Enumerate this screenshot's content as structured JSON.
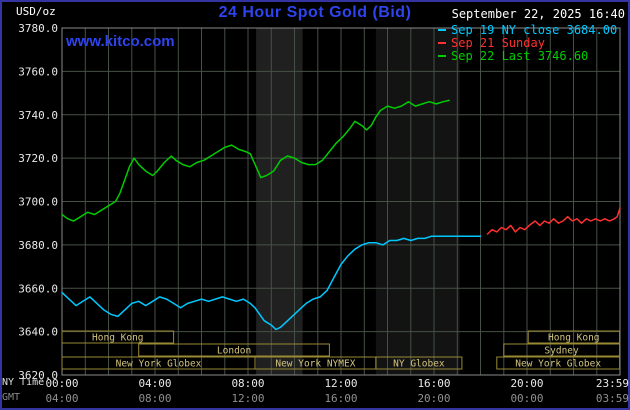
{
  "header": {
    "units": "USD/oz",
    "title": "24 Hour Spot Gold (Bid)",
    "datetime": "September 22, 2025 16:40",
    "watermark": "www.kitco.com",
    "legend": [
      {
        "label": "Sep 19 NY close 3684.00",
        "color": "#00c8ff"
      },
      {
        "label": "Sep 21 Sunday",
        "color": "#ff3030"
      },
      {
        "label": "Sep 22 Last 3746.60",
        "color": "#00cc00"
      }
    ]
  },
  "axes": {
    "ny_time_label": "NY Time",
    "gmt_label": "GMT"
  },
  "chart_data": {
    "type": "line",
    "title": "24 Hour Spot Gold (Bid)",
    "xlabel": "NY Time",
    "ylabel": "USD/oz",
    "x_hours": [
      0,
      24
    ],
    "ylim": [
      3620,
      3780
    ],
    "ytick_step": 20,
    "grid": true,
    "grid_color": "#465046",
    "frame_color": "#8a8a8a",
    "session_border": "#9a8a34",
    "session_text": "#d2c47c",
    "xticks": [
      {
        "h": 0,
        "ny": "00:00",
        "gmt": "04:00"
      },
      {
        "h": 4,
        "ny": "04:00",
        "gmt": "08:00"
      },
      {
        "h": 8,
        "ny": "08:00",
        "gmt": "12:00"
      },
      {
        "h": 12,
        "ny": "12:00",
        "gmt": "16:00"
      },
      {
        "h": 16,
        "ny": "16:00",
        "gmt": "20:00"
      },
      {
        "h": 20,
        "ny": "20:00",
        "gmt": "00:00"
      },
      {
        "h": 23.98,
        "ny": "23:59",
        "gmt": "03:59"
      }
    ],
    "highlight_bands": [
      {
        "from": 8.35,
        "to": 10.35,
        "color": "#202020"
      },
      {
        "from": 13.5,
        "to": 17.1,
        "color": "#131313"
      }
    ],
    "sessions": [
      {
        "label": "Hong Kong",
        "row": 0,
        "from": 0,
        "to": 4.8
      },
      {
        "label": "Hong Kong",
        "row": 0,
        "from": 20.05,
        "to": 23.98
      },
      {
        "label": "London",
        "row": 1,
        "from": 3.3,
        "to": 11.5
      },
      {
        "label": "Sydney",
        "row": 1,
        "from": 19.0,
        "to": 23.98
      },
      {
        "label": "New York Globex",
        "row": 2,
        "from": 0,
        "to": 8.3
      },
      {
        "label": "New York NYMEX",
        "row": 2,
        "from": 8.3,
        "to": 13.5
      },
      {
        "label": "NY Globex",
        "row": 2,
        "from": 13.5,
        "to": 17.2
      },
      {
        "label": "New York Globex",
        "row": 2,
        "from": 18.7,
        "to": 23.98
      }
    ],
    "series": [
      {
        "id": "sep19",
        "name": "Sep 19 NY close",
        "close": 3684.0,
        "color": "#00c8ff",
        "points": [
          [
            0,
            3658
          ],
          [
            0.3,
            3655
          ],
          [
            0.6,
            3652
          ],
          [
            0.9,
            3654
          ],
          [
            1.2,
            3656
          ],
          [
            1.5,
            3653
          ],
          [
            1.8,
            3650
          ],
          [
            2.1,
            3648
          ],
          [
            2.4,
            3647
          ],
          [
            2.7,
            3650
          ],
          [
            3.0,
            3653
          ],
          [
            3.3,
            3654
          ],
          [
            3.6,
            3652
          ],
          [
            3.9,
            3654
          ],
          [
            4.2,
            3656
          ],
          [
            4.5,
            3655
          ],
          [
            4.8,
            3653
          ],
          [
            5.1,
            3651
          ],
          [
            5.4,
            3653
          ],
          [
            5.7,
            3654
          ],
          [
            6.0,
            3655
          ],
          [
            6.3,
            3654
          ],
          [
            6.6,
            3655
          ],
          [
            6.9,
            3656
          ],
          [
            7.2,
            3655
          ],
          [
            7.5,
            3654
          ],
          [
            7.8,
            3655
          ],
          [
            8.1,
            3653
          ],
          [
            8.3,
            3651
          ],
          [
            8.5,
            3648
          ],
          [
            8.7,
            3645
          ],
          [
            9.0,
            3643
          ],
          [
            9.2,
            3641
          ],
          [
            9.4,
            3642
          ],
          [
            9.6,
            3644
          ],
          [
            9.9,
            3647
          ],
          [
            10.2,
            3650
          ],
          [
            10.5,
            3653
          ],
          [
            10.8,
            3655
          ],
          [
            11.1,
            3656
          ],
          [
            11.4,
            3659
          ],
          [
            11.7,
            3665
          ],
          [
            12.0,
            3671
          ],
          [
            12.3,
            3675
          ],
          [
            12.6,
            3678
          ],
          [
            12.9,
            3680
          ],
          [
            13.2,
            3681
          ],
          [
            13.5,
            3681
          ],
          [
            13.8,
            3680
          ],
          [
            14.1,
            3682
          ],
          [
            14.4,
            3682
          ],
          [
            14.7,
            3683
          ],
          [
            15.0,
            3682
          ],
          [
            15.3,
            3683
          ],
          [
            15.6,
            3683
          ],
          [
            15.9,
            3684
          ],
          [
            16.3,
            3684
          ],
          [
            16.7,
            3684
          ],
          [
            17.1,
            3684
          ],
          [
            17.6,
            3684
          ],
          [
            18.0,
            3684
          ]
        ]
      },
      {
        "id": "sep21",
        "name": "Sep 21 Sunday",
        "color": "#ff3030",
        "points": [
          [
            18.3,
            3685
          ],
          [
            18.5,
            3687
          ],
          [
            18.7,
            3686
          ],
          [
            18.9,
            3688
          ],
          [
            19.1,
            3687
          ],
          [
            19.3,
            3689
          ],
          [
            19.5,
            3686
          ],
          [
            19.7,
            3688
          ],
          [
            19.9,
            3687
          ],
          [
            20.1,
            3689
          ],
          [
            20.35,
            3691
          ],
          [
            20.55,
            3689
          ],
          [
            20.75,
            3691
          ],
          [
            20.95,
            3690
          ],
          [
            21.15,
            3692
          ],
          [
            21.35,
            3690
          ],
          [
            21.55,
            3691
          ],
          [
            21.75,
            3693
          ],
          [
            21.95,
            3691
          ],
          [
            22.15,
            3692
          ],
          [
            22.35,
            3690
          ],
          [
            22.55,
            3692
          ],
          [
            22.75,
            3691
          ],
          [
            22.95,
            3692
          ],
          [
            23.15,
            3691
          ],
          [
            23.35,
            3692
          ],
          [
            23.55,
            3691
          ],
          [
            23.75,
            3692
          ],
          [
            23.88,
            3693
          ],
          [
            24,
            3697
          ]
        ]
      },
      {
        "id": "sep22",
        "name": "Sep 22 Last",
        "last": 3746.6,
        "color": "#00cc00",
        "points": [
          [
            0,
            3694
          ],
          [
            0.25,
            3692
          ],
          [
            0.5,
            3691
          ],
          [
            0.8,
            3693
          ],
          [
            1.1,
            3695
          ],
          [
            1.4,
            3694
          ],
          [
            1.7,
            3696
          ],
          [
            2.0,
            3698
          ],
          [
            2.3,
            3700
          ],
          [
            2.5,
            3704
          ],
          [
            2.7,
            3710
          ],
          [
            2.9,
            3716
          ],
          [
            3.1,
            3720
          ],
          [
            3.3,
            3717
          ],
          [
            3.6,
            3714
          ],
          [
            3.9,
            3712
          ],
          [
            4.1,
            3714
          ],
          [
            4.4,
            3718
          ],
          [
            4.7,
            3721
          ],
          [
            4.9,
            3719
          ],
          [
            5.2,
            3717
          ],
          [
            5.5,
            3716
          ],
          [
            5.8,
            3718
          ],
          [
            6.1,
            3719
          ],
          [
            6.4,
            3721
          ],
          [
            6.7,
            3723
          ],
          [
            7.0,
            3725
          ],
          [
            7.3,
            3726
          ],
          [
            7.6,
            3724
          ],
          [
            7.9,
            3723
          ],
          [
            8.1,
            3722
          ],
          [
            8.35,
            3716
          ],
          [
            8.55,
            3711
          ],
          [
            8.8,
            3712
          ],
          [
            9.1,
            3714
          ],
          [
            9.4,
            3719
          ],
          [
            9.7,
            3721
          ],
          [
            10.0,
            3720
          ],
          [
            10.3,
            3718
          ],
          [
            10.6,
            3717
          ],
          [
            10.9,
            3717
          ],
          [
            11.2,
            3719
          ],
          [
            11.5,
            3723
          ],
          [
            11.8,
            3727
          ],
          [
            12.1,
            3730
          ],
          [
            12.4,
            3734
          ],
          [
            12.6,
            3737
          ],
          [
            12.9,
            3735
          ],
          [
            13.1,
            3733
          ],
          [
            13.3,
            3735
          ],
          [
            13.5,
            3739
          ],
          [
            13.7,
            3742
          ],
          [
            14.0,
            3744
          ],
          [
            14.3,
            3743
          ],
          [
            14.6,
            3744
          ],
          [
            14.9,
            3746
          ],
          [
            15.2,
            3744
          ],
          [
            15.5,
            3745
          ],
          [
            15.8,
            3746
          ],
          [
            16.1,
            3745
          ],
          [
            16.4,
            3746
          ],
          [
            16.65,
            3746.6
          ]
        ]
      }
    ]
  }
}
